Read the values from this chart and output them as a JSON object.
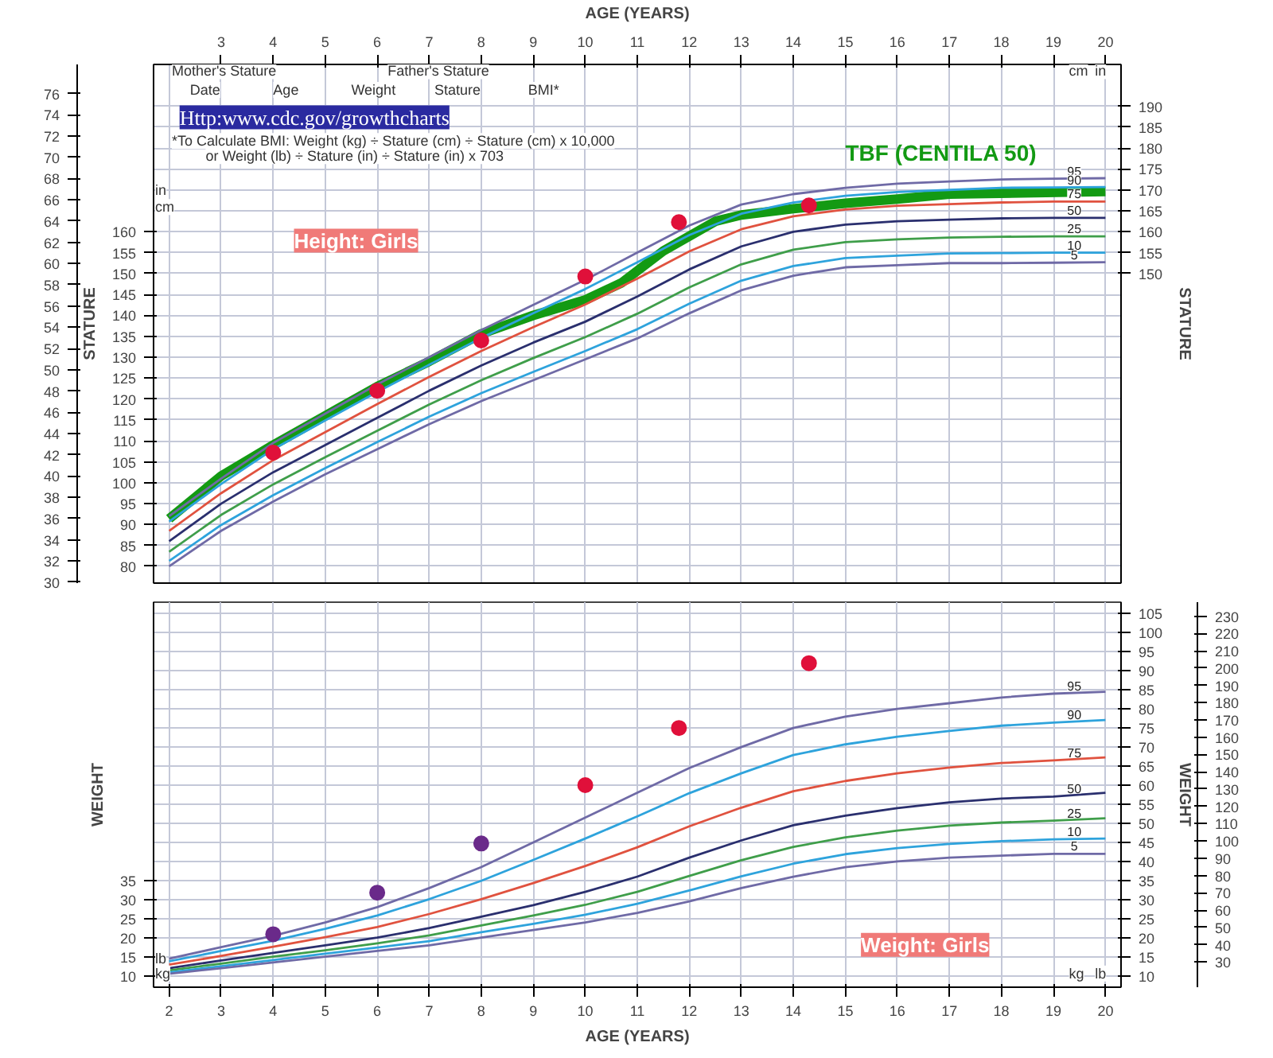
{
  "chart_data": [
    {
      "type": "line",
      "x2label": "AGE (YEARS)",
      "ylabel": "STATURE",
      "y2label": "STATURE",
      "tick_labels": "y",
      "xlim": [
        1.7,
        20.3
      ],
      "xticks": [
        2,
        3,
        4,
        5,
        6,
        7,
        8,
        9,
        10,
        11,
        12,
        13,
        14,
        15,
        16,
        17,
        18,
        19,
        20
      ],
      "x2lim": [
        1.7,
        20.3
      ],
      "x2ticks": [
        3,
        4,
        5,
        6,
        7,
        8,
        9,
        10,
        11,
        12,
        13,
        14,
        15,
        16,
        17,
        18,
        19,
        20
      ],
      "ylim": [
        76,
        200
      ],
      "yticks": [
        80,
        85,
        90,
        95,
        100,
        105,
        110,
        115,
        120,
        125,
        130,
        135,
        140,
        145,
        150,
        155,
        160
      ],
      "y2lim": [
        76,
        200
      ],
      "y2ticks": [
        150,
        155,
        160,
        165,
        170,
        175,
        180,
        185,
        190
      ],
      "y3lim": [
        29.92,
        78.74
      ],
      "y3ticks": [
        30,
        32,
        34,
        36,
        38,
        40,
        42,
        44,
        46,
        48,
        50,
        52,
        54,
        56,
        58,
        60,
        62,
        64,
        66,
        68,
        70,
        72,
        74,
        76
      ],
      "grid": true,
      "x": [
        2,
        3,
        4,
        5,
        6,
        7,
        8,
        9,
        10,
        11,
        12,
        13,
        14,
        15,
        16,
        17,
        18,
        19,
        20
      ],
      "series": [
        {
          "name": "TBF (CENTILA 50)",
          "color": "#139a13",
          "x": [
            2,
            3,
            4,
            5,
            6,
            7,
            8,
            9,
            10,
            10.7,
            11.5,
            12.5,
            13,
            14,
            15,
            16,
            17,
            20
          ],
          "values": [
            91.4,
            101.6,
            109,
            116,
            123,
            129,
            135.6,
            140,
            143.7,
            147.8,
            155.4,
            162.5,
            164,
            165.5,
            166.8,
            167.8,
            169,
            169.6
          ]
        },
        {
          "name": "95",
          "color": "#6f6aa6",
          "values": [
            92,
            101,
            109.5,
            116.5,
            123.5,
            130,
            136.5,
            142.5,
            148.5,
            155,
            161.5,
            166.5,
            169,
            170.5,
            171.5,
            172,
            172.5,
            172.7,
            172.8
          ]
        },
        {
          "name": "90",
          "color": "#2ea3dc",
          "values": [
            90.7,
            99.7,
            108,
            114.9,
            121.7,
            128.2,
            134.6,
            140.5,
            146.3,
            152.7,
            159.2,
            164.3,
            167,
            168.6,
            169.5,
            170,
            170.5,
            170.6,
            170.7
          ]
        },
        {
          "name": "75",
          "color": "#e0523f",
          "values": [
            88.5,
            97.5,
            105.4,
            112.1,
            118.8,
            125.3,
            131.5,
            137.2,
            142.6,
            148.8,
            155.3,
            160.6,
            163.7,
            165.3,
            166.2,
            166.6,
            167,
            167.2,
            167.2
          ]
        },
        {
          "name": "50",
          "color": "#2a2f6e",
          "values": [
            86,
            95,
            102.5,
            109,
            115.5,
            122,
            128,
            133.5,
            138.5,
            144.5,
            151,
            156.5,
            160,
            161.7,
            162.5,
            162.9,
            163.2,
            163.3,
            163.3
          ]
        },
        {
          "name": "25",
          "color": "#3f9e4a",
          "values": [
            83.5,
            92.3,
            99.6,
            106.1,
            112.4,
            118.7,
            124.5,
            129.8,
            134.8,
            140.4,
            146.7,
            152.2,
            155.7,
            157.5,
            158.2,
            158.6,
            158.8,
            158.9,
            158.9
          ]
        },
        {
          "name": "10",
          "color": "#2ea3dc",
          "values": [
            81.3,
            89.9,
            97,
            103.5,
            109.7,
            115.8,
            121.4,
            126.5,
            131.5,
            136.7,
            142.8,
            148.3,
            151.8,
            153.7,
            154.3,
            154.8,
            154.9,
            155,
            155
          ]
        },
        {
          "name": "5",
          "color": "#6f6aa6",
          "values": [
            80,
            88.5,
            95.5,
            102,
            108,
            114,
            119.5,
            124.5,
            129.5,
            134.5,
            140.5,
            146,
            149.5,
            151.5,
            152,
            152.5,
            152.5,
            152.6,
            152.7
          ]
        },
        {
          "type": "scatter",
          "marker": "circle",
          "color": "#e0103a",
          "x": [
            4,
            6,
            8,
            10,
            11.8,
            14.3
          ],
          "values": [
            107.2,
            122,
            134,
            149.3,
            162.3,
            166.3
          ]
        }
      ],
      "annotations": [
        "Mother's Stature",
        "Father's Stature",
        "Date",
        "Age",
        "Weight",
        "Stature",
        "BMI*",
        "Http:www.cdc.gov/growthcharts",
        "*To Calculate BMI: Weight (kg) ÷ Stature (cm) ÷ Stature (cm) x 10,000",
        "or Weight (lb) ÷ Stature (in) ÷ Stature (in) x 703",
        "Height: Girls",
        "in",
        "cm",
        "cm",
        "in"
      ]
    },
    {
      "type": "line",
      "xlabel": "AGE (YEARS)",
      "ylabel": "WEIGHT",
      "y2label": "WEIGHT",
      "xlim": [
        1.7,
        20.3
      ],
      "xticks": [
        2,
        3,
        4,
        5,
        6,
        7,
        8,
        9,
        10,
        11,
        12,
        13,
        14,
        15,
        16,
        17,
        18,
        19,
        20
      ],
      "ylim": [
        7,
        108
      ],
      "yticks": [
        10,
        15,
        20,
        25,
        30,
        35
      ],
      "y2lim": [
        7,
        108
      ],
      "y2ticks": [
        10,
        15,
        20,
        25,
        30,
        35,
        40,
        45,
        50,
        55,
        60,
        65,
        70,
        75,
        80,
        85,
        90,
        95,
        100,
        105
      ],
      "y3lim": [
        15.43,
        238.1
      ],
      "y3ticks": [
        30,
        40,
        50,
        60,
        70,
        80,
        90,
        100,
        110,
        120,
        130,
        140,
        150,
        160,
        170,
        180,
        190,
        200,
        210,
        220,
        230
      ],
      "grid": true,
      "x": [
        2,
        3,
        4,
        5,
        6,
        7,
        8,
        9,
        10,
        11,
        12,
        13,
        14,
        15,
        16,
        17,
        18,
        19,
        20
      ],
      "series": [
        {
          "name": "95",
          "color": "#6f6aa6",
          "values": [
            14.5,
            17.5,
            20.5,
            24,
            28,
            33,
            38.5,
            45,
            51.5,
            58,
            64.5,
            70,
            75,
            78,
            80,
            81.5,
            83,
            84,
            84.5
          ]
        },
        {
          "name": "90",
          "color": "#2ea3dc",
          "values": [
            13.8,
            16.5,
            19.2,
            22.3,
            25.8,
            30.1,
            34.9,
            40.4,
            46,
            51.8,
            57.9,
            63.1,
            67.9,
            70.7,
            72.7,
            74.2,
            75.6,
            76.4,
            77.1
          ]
        },
        {
          "name": "75",
          "color": "#e0523f",
          "values": [
            12.9,
            15.2,
            17.6,
            20.1,
            22.8,
            26.2,
            30.1,
            34.3,
            38.8,
            43.7,
            49.2,
            54.1,
            58.4,
            61.1,
            63.1,
            64.6,
            65.8,
            66.5,
            67.3
          ]
        },
        {
          "name": "50",
          "color": "#2a2f6e",
          "values": [
            12,
            14,
            16,
            18,
            20,
            22.5,
            25.5,
            28.5,
            32,
            36,
            41,
            45.5,
            49.5,
            52,
            54,
            55.5,
            56.5,
            57,
            58
          ]
        },
        {
          "name": "25",
          "color": "#3f9e4a",
          "values": [
            11.4,
            13.2,
            15,
            16.7,
            18.5,
            20.6,
            23.2,
            25.8,
            28.6,
            32,
            36.2,
            40.3,
            43.8,
            46.3,
            48.1,
            49.4,
            50.2,
            50.7,
            51.3
          ]
        },
        {
          "name": "10",
          "color": "#2ea3dc",
          "values": [
            10.9,
            12.5,
            14.1,
            15.8,
            17.4,
            19.1,
            21.4,
            23.6,
            26,
            28.9,
            32.4,
            36.1,
            39.4,
            41.9,
            43.5,
            44.6,
            45.3,
            45.8,
            46
          ]
        },
        {
          "name": "5",
          "color": "#6f6aa6",
          "values": [
            10.5,
            12,
            13.5,
            15,
            16.5,
            18,
            20,
            22,
            24,
            26.5,
            29.5,
            33,
            36,
            38.5,
            40,
            41,
            41.5,
            42,
            42
          ]
        },
        {
          "type": "scatter",
          "marker": "circle",
          "color": "#6a2a8a",
          "x": [
            4,
            6,
            8
          ],
          "values": [
            20.9,
            31.8,
            44.7
          ]
        },
        {
          "type": "scatter",
          "marker": "circle",
          "color": "#e0103a",
          "x": [
            10,
            11.8,
            14.3
          ],
          "values": [
            60,
            75,
            92
          ]
        }
      ],
      "annotations": [
        "Weight: Girls",
        "lb",
        "kg",
        "kg",
        "lb"
      ]
    }
  ]
}
